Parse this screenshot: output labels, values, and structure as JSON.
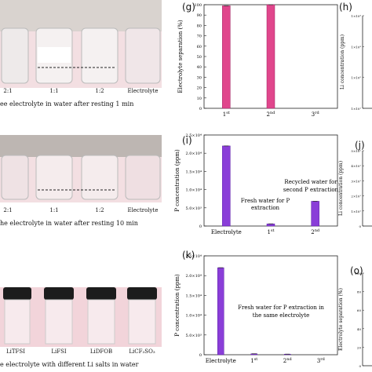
{
  "photos": [
    {
      "vials": [
        "2:1",
        "1:1",
        "1:2",
        "Electrolyte"
      ],
      "caption": "ee electrolyte in water after resting 1 min"
    },
    {
      "vials": [
        "2:1",
        "1:1",
        "1:2",
        "Electrolyte"
      ],
      "caption": "he electrolyte in water after resting 10 min"
    },
    {
      "vials": [
        "LiTFSI",
        "LiFSI",
        "LiDFOB",
        "LiCF₃SO₃"
      ],
      "caption": "e electrolyte with different Li salts in water"
    }
  ],
  "panel_labels": {
    "g": "(g)",
    "h": "(h)",
    "i": "(i)",
    "j": "(j)",
    "k": "(k)",
    "o": "(o)"
  },
  "colors": {
    "pink": "#e0468c",
    "pink_light": "#f0a8c8",
    "purple": "#8a3ed8",
    "purple_light": "#c9a6f0",
    "bg_photo": "#f2d4da"
  },
  "chart_data": [
    {
      "id": "g",
      "type": "bar",
      "ylabel": "Electrolyte separation (%)",
      "categories": [
        "1st",
        "2nd",
        "3rd"
      ],
      "values": [
        99,
        100,
        0
      ],
      "ylim": [
        0,
        100
      ],
      "yticks": [
        0,
        10,
        20,
        30,
        40,
        50,
        60,
        70,
        80,
        90,
        100
      ]
    },
    {
      "id": "h",
      "type": "bar",
      "ylabel": "Li concentration (ppm)",
      "yticks": [
        "1×10¹",
        "1×10²",
        "1×10³",
        "1×10³"
      ]
    },
    {
      "id": "i",
      "type": "bar",
      "ylabel": "P concentration (ppm)",
      "categories": [
        "Electrolyte",
        "1st",
        "2nd"
      ],
      "values": [
        22000,
        600,
        6800
      ],
      "ylim": [
        0,
        25000
      ],
      "yticks": [
        "0",
        "5.0×10³",
        "1.0×10⁴",
        "1.5×10⁴",
        "2.0×10⁴",
        "2.5×10⁴"
      ],
      "annotations": [
        "Fresh water for P",
        "extraction",
        "Recycled water for",
        "second P extraction"
      ]
    },
    {
      "id": "j",
      "type": "bar",
      "ylabel": "Li concentration (ppm)",
      "yticks": [
        "5×10¹",
        "4×10¹",
        "3×10¹",
        "2×10¹",
        "1×10¹",
        "0"
      ]
    },
    {
      "id": "k",
      "type": "bar",
      "ylabel": "P concentration (ppm)",
      "categories": [
        "Electrolyte",
        "1st",
        "2nd",
        "3rd"
      ],
      "values": [
        22000,
        250,
        150,
        0
      ],
      "ylim": [
        0,
        25000
      ],
      "yticks": [
        "0",
        "5.0×10³",
        "1.0×10⁴",
        "1.5×10⁴",
        "2.0×10⁴",
        "2.5×10⁴"
      ],
      "annotations": [
        "Fresh water for P extraction in",
        "the same electrolyte"
      ]
    },
    {
      "id": "o",
      "type": "bar",
      "ylabel": "Electrolyte separation (%)",
      "yticks": [
        "0",
        "20",
        "40",
        "60",
        "80",
        "100"
      ]
    }
  ]
}
